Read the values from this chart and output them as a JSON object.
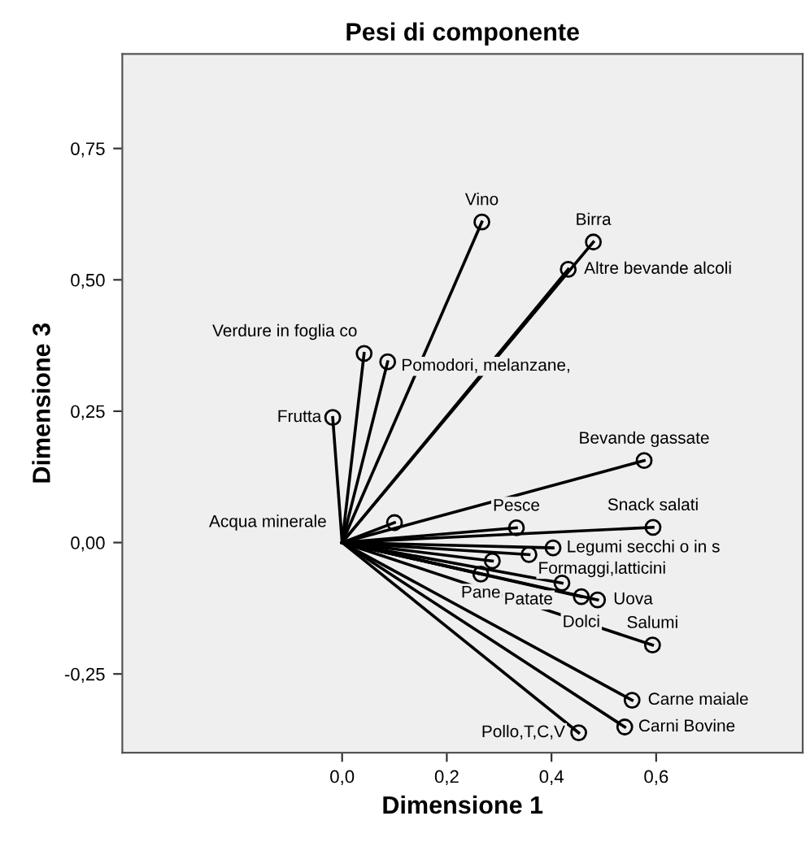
{
  "chart_data": {
    "type": "scatter",
    "title": "Pesi di componente",
    "xlabel": "Dimensione 1",
    "ylabel": "Dimensione 3",
    "x": [
      0.267,
      0.48,
      0.432,
      0.042,
      0.087,
      -0.018,
      0.577,
      0.1,
      0.333,
      0.594,
      0.403,
      0.357,
      0.287,
      0.265,
      0.42,
      0.457,
      0.488,
      0.593,
      0.554,
      0.54,
      0.452
    ],
    "values": [
      0.61,
      0.572,
      0.52,
      0.36,
      0.344,
      0.238,
      0.156,
      0.038,
      0.028,
      0.029,
      -0.01,
      -0.023,
      -0.035,
      -0.06,
      -0.077,
      -0.103,
      -0.109,
      -0.195,
      -0.3,
      -0.351,
      -0.362
    ],
    "color": "#000000",
    "marker": "circle",
    "grid": false,
    "xlim": [
      -0.42,
      0.88
    ],
    "ylim": [
      -0.4,
      0.93
    ],
    "xticks": [
      {
        "value": 0.0,
        "label": "0,0"
      },
      {
        "value": 0.2,
        "label": "0,2"
      },
      {
        "value": 0.4,
        "label": "0,4"
      },
      {
        "value": 0.6,
        "label": "0,6"
      }
    ],
    "yticks": [
      {
        "value": -0.25,
        "label": "-0,25"
      },
      {
        "value": 0.0,
        "label": "0,00"
      },
      {
        "value": 0.25,
        "label": "0,25"
      },
      {
        "value": 0.5,
        "label": "0,50"
      },
      {
        "value": 0.75,
        "label": "0,75"
      }
    ],
    "annotations": [
      {
        "text": "Vino",
        "x": 0.267,
        "y": 0.61
      },
      {
        "text": "Birra",
        "x": 0.48,
        "y": 0.572
      },
      {
        "text": "Altre bevande alcoli",
        "x": 0.432,
        "y": 0.52
      },
      {
        "text": "Verdure in foglia co",
        "x": 0.042,
        "y": 0.36
      },
      {
        "text": "Pomodori, melanzane,",
        "x": 0.087,
        "y": 0.344
      },
      {
        "text": "Frutta",
        "x": -0.018,
        "y": 0.238
      },
      {
        "text": "Bevande gassate",
        "x": 0.577,
        "y": 0.156
      },
      {
        "text": "Acqua minerale",
        "x": 0.1,
        "y": 0.038
      },
      {
        "text": "Pesce",
        "x": 0.333,
        "y": 0.028
      },
      {
        "text": "Snack salati",
        "x": 0.594,
        "y": 0.029
      },
      {
        "text": "Legumi secchi o in s",
        "x": 0.403,
        "y": -0.01
      },
      {
        "text": "Formaggi,latticini",
        "x": 0.357,
        "y": -0.023
      },
      {
        "text": "Pane",
        "x": 0.265,
        "y": -0.06
      },
      {
        "text": "Patate",
        "x": 0.42,
        "y": -0.077
      },
      {
        "text": "Dolci",
        "x": 0.457,
        "y": -0.103
      },
      {
        "text": "Uova",
        "x": 0.488,
        "y": -0.109
      },
      {
        "text": "Salumi",
        "x": 0.593,
        "y": -0.195
      },
      {
        "text": "Carne maiale",
        "x": 0.554,
        "y": -0.3
      },
      {
        "text": "Carni Bovine",
        "x": 0.54,
        "y": -0.351
      },
      {
        "text": "Pollo,T,C,V",
        "x": 0.452,
        "y": -0.362
      }
    ]
  }
}
